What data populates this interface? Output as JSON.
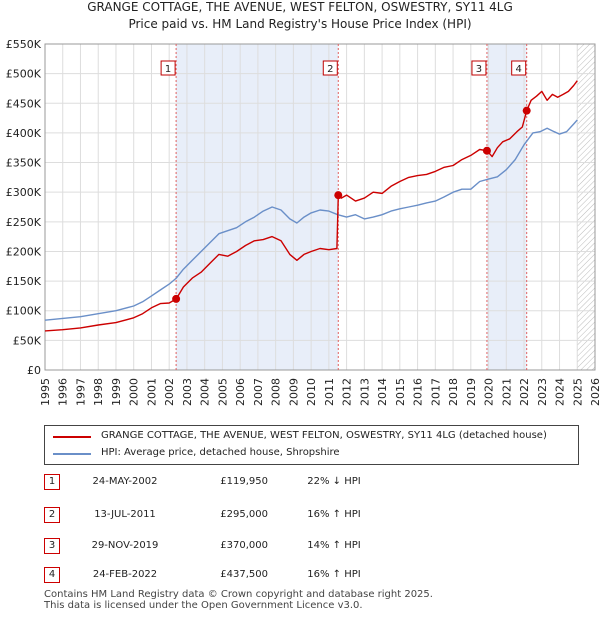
{
  "chart_data": {
    "type": "line",
    "title": "GRANGE COTTAGE, THE AVENUE, WEST FELTON, OSWESTRY, SY11 4LG",
    "subtitle": "Price paid vs. HM Land Registry's House Price Index (HPI)",
    "xlabel": "",
    "ylabel": "",
    "xlim": [
      1995,
      2026
    ],
    "ylim": [
      0,
      550000
    ],
    "y_ticks": [
      0,
      50000,
      100000,
      150000,
      200000,
      250000,
      300000,
      350000,
      400000,
      450000,
      500000,
      550000
    ],
    "y_tick_labels": [
      "£0",
      "£50K",
      "£100K",
      "£150K",
      "£200K",
      "£250K",
      "£300K",
      "£350K",
      "£400K",
      "£450K",
      "£500K",
      "£550K"
    ],
    "x_ticks": [
      1995,
      1996,
      1997,
      1998,
      1999,
      2000,
      2001,
      2002,
      2003,
      2004,
      2005,
      2006,
      2007,
      2008,
      2009,
      2010,
      2011,
      2012,
      2013,
      2014,
      2015,
      2016,
      2017,
      2018,
      2019,
      2020,
      2021,
      2022,
      2023,
      2024,
      2025,
      2026
    ],
    "x_tick_labels": [
      "1995",
      "1996",
      "1997",
      "1998",
      "1999",
      "2000",
      "2001",
      "2002",
      "2003",
      "2004",
      "2005",
      "2006",
      "2007",
      "2008",
      "2009",
      "2010",
      "2011",
      "2012",
      "2013",
      "2014",
      "2015",
      "2016",
      "2017",
      "2018",
      "2019",
      "2020",
      "2021",
      "2022",
      "2023",
      "2024",
      "2025",
      "2026"
    ],
    "grid": true,
    "series": [
      {
        "name": "GRANGE COTTAGE, THE AVENUE, WEST FELTON, OSWESTRY, SY11 4LG (detached house)",
        "color": "#cc0000",
        "x": [
          1995.0,
          1996.0,
          1997.0,
          1998.0,
          1999.0,
          2000.0,
          2000.5,
          2001.0,
          2001.5,
          2002.0,
          2002.4,
          2002.8,
          2003.3,
          2003.8,
          2004.3,
          2004.8,
          2005.3,
          2005.8,
          2006.3,
          2006.8,
          2007.3,
          2007.8,
          2008.3,
          2008.8,
          2009.2,
          2009.6,
          2010.0,
          2010.5,
          2011.0,
          2011.45,
          2011.53,
          2011.7,
          2012.0,
          2012.5,
          2013.0,
          2013.5,
          2014.0,
          2014.5,
          2015.0,
          2015.5,
          2016.0,
          2016.5,
          2017.0,
          2017.5,
          2018.0,
          2018.5,
          2019.0,
          2019.5,
          2019.91,
          2020.2,
          2020.5,
          2020.8,
          2021.2,
          2021.6,
          2021.9,
          2022.15,
          2022.4,
          2022.7,
          2023.0,
          2023.3,
          2023.6,
          2023.9,
          2024.2,
          2024.5,
          2024.8,
          2025.0
        ],
        "values": [
          66000,
          68000,
          71000,
          76000,
          80000,
          88000,
          95000,
          105000,
          112000,
          113000,
          119950,
          140000,
          155000,
          165000,
          180000,
          195000,
          192000,
          200000,
          210000,
          218000,
          220000,
          225000,
          218000,
          195000,
          185000,
          195000,
          200000,
          205000,
          203000,
          205000,
          295000,
          290000,
          295000,
          285000,
          290000,
          300000,
          298000,
          310000,
          318000,
          325000,
          328000,
          330000,
          335000,
          342000,
          345000,
          355000,
          362000,
          372000,
          370000,
          360000,
          375000,
          385000,
          390000,
          402000,
          410000,
          437500,
          455000,
          462000,
          470000,
          455000,
          465000,
          460000,
          465000,
          470000,
          480000,
          488000
        ]
      },
      {
        "name": "HPI: Average price, detached house, Shropshire",
        "color": "#6a8fc8",
        "x": [
          1995.0,
          1996.0,
          1997.0,
          1998.0,
          1999.0,
          2000.0,
          2000.5,
          2001.0,
          2001.5,
          2002.0,
          2002.4,
          2002.8,
          2003.3,
          2003.8,
          2004.3,
          2004.8,
          2005.3,
          2005.8,
          2006.3,
          2006.8,
          2007.3,
          2007.8,
          2008.3,
          2008.8,
          2009.2,
          2009.6,
          2010.0,
          2010.5,
          2011.0,
          2011.5,
          2012.0,
          2012.5,
          2013.0,
          2013.5,
          2014.0,
          2014.5,
          2015.0,
          2015.5,
          2016.0,
          2016.5,
          2017.0,
          2017.5,
          2018.0,
          2018.5,
          2019.0,
          2019.5,
          2020.0,
          2020.5,
          2021.0,
          2021.5,
          2022.0,
          2022.5,
          2022.9,
          2023.3,
          2023.7,
          2024.0,
          2024.4,
          2024.8,
          2025.0
        ],
        "values": [
          84000,
          87000,
          90000,
          95000,
          100000,
          108000,
          115000,
          125000,
          135000,
          145000,
          155000,
          170000,
          185000,
          200000,
          215000,
          230000,
          235000,
          240000,
          250000,
          258000,
          268000,
          275000,
          270000,
          255000,
          248000,
          258000,
          265000,
          270000,
          268000,
          262000,
          258000,
          262000,
          255000,
          258000,
          262000,
          268000,
          272000,
          275000,
          278000,
          282000,
          285000,
          292000,
          300000,
          305000,
          305000,
          318000,
          322000,
          326000,
          338000,
          355000,
          380000,
          400000,
          402000,
          408000,
          402000,
          398000,
          402000,
          415000,
          422000
        ]
      }
    ],
    "sales": [
      {
        "num": "1",
        "x": 2002.39,
        "value": 119950
      },
      {
        "num": "2",
        "x": 2011.53,
        "value": 295000
      },
      {
        "num": "3",
        "x": 2019.91,
        "value": 370000
      },
      {
        "num": "4",
        "x": 2022.15,
        "value": 437500
      }
    ],
    "shaded_periods": [
      [
        2002.39,
        2011.53
      ],
      [
        2019.91,
        2022.15
      ]
    ],
    "hatched_from": 2025.0
  },
  "legend": {
    "property_label": "GRANGE COTTAGE, THE AVENUE, WEST FELTON, OSWESTRY, SY11 4LG (detached house)",
    "hpi_label": "HPI: Average price, detached house, Shropshire"
  },
  "sales_table": [
    {
      "num": "1",
      "date": "24-MAY-2002",
      "price": "£119,950",
      "hpi": "22% ↓ HPI"
    },
    {
      "num": "2",
      "date": "13-JUL-2011",
      "price": "£295,000",
      "hpi": "16% ↑ HPI"
    },
    {
      "num": "3",
      "date": "29-NOV-2019",
      "price": "£370,000",
      "hpi": "14% ↑ HPI"
    },
    {
      "num": "4",
      "date": "24-FEB-2022",
      "price": "£437,500",
      "hpi": "16% ↑ HPI"
    }
  ],
  "footer": {
    "line1": "Contains HM Land Registry data © Crown copyright and database right 2025.",
    "line2": "This data is licensed under the Open Government Licence v3.0."
  }
}
